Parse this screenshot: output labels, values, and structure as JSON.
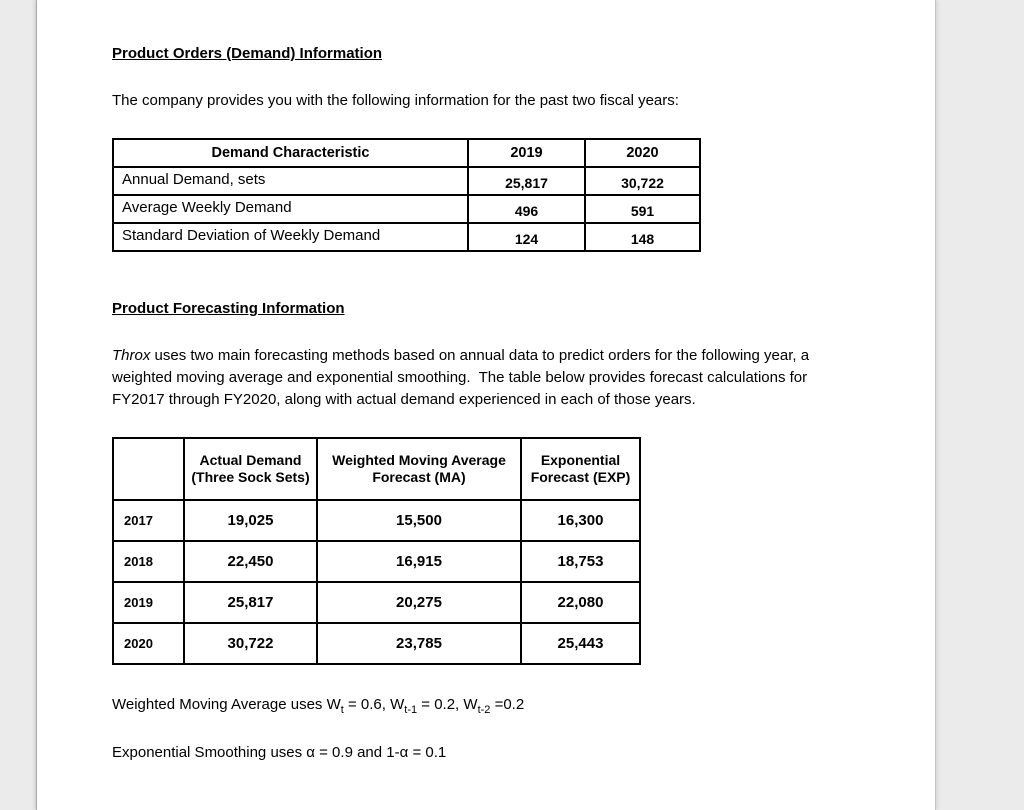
{
  "document": {
    "section1": {
      "heading": "Product Orders (Demand) Information",
      "intro": "The company provides you with the following information for the past two fiscal years:"
    },
    "demand_table": {
      "headers": [
        "Demand Characteristic",
        "2019",
        "2020"
      ],
      "rows": [
        {
          "label": "Annual Demand, sets",
          "y2019": "25,817",
          "y2020": "30,722"
        },
        {
          "label": "Average Weekly Demand",
          "y2019": "496",
          "y2020": "591"
        },
        {
          "label": "Standard Deviation of Weekly Demand",
          "y2019": "124",
          "y2020": "148"
        }
      ]
    },
    "section2": {
      "heading": "Product Forecasting Information",
      "intro_lead_italic": "Throx",
      "intro_rest": " uses two main forecasting methods based on annual data to predict orders for the following year, a weighted moving average and exponential smoothing.  The table below provides forecast calculations for FY2017 through FY2020, along with actual demand experienced in each of those years."
    },
    "forecast_table": {
      "headers": {
        "year": "",
        "actual": "Actual Demand (Three Sock Sets)",
        "ma": "Weighted Moving Average Forecast (MA)",
        "exp": "Exponential Forecast (EXP)"
      },
      "rows": [
        {
          "year": "2017",
          "actual": "19,025",
          "ma": "15,500",
          "exp": "16,300"
        },
        {
          "year": "2018",
          "actual": "22,450",
          "ma": "16,915",
          "exp": "18,753"
        },
        {
          "year": "2019",
          "actual": "25,817",
          "ma": "20,275",
          "exp": "22,080"
        },
        {
          "year": "2020",
          "actual": "30,722",
          "ma": "23,785",
          "exp": "25,443"
        }
      ]
    },
    "notes": {
      "wma": {
        "prefix": "Weighted Moving Average uses W",
        "sub1": "t",
        "mid1": " = 0.6, W",
        "sub2": "t-1",
        "mid2": " = 0.2, W",
        "sub3": "t-2",
        "suffix": " =0.2"
      },
      "exp": "Exponential Smoothing uses α = 0.9 and 1-α = 0.1"
    }
  }
}
